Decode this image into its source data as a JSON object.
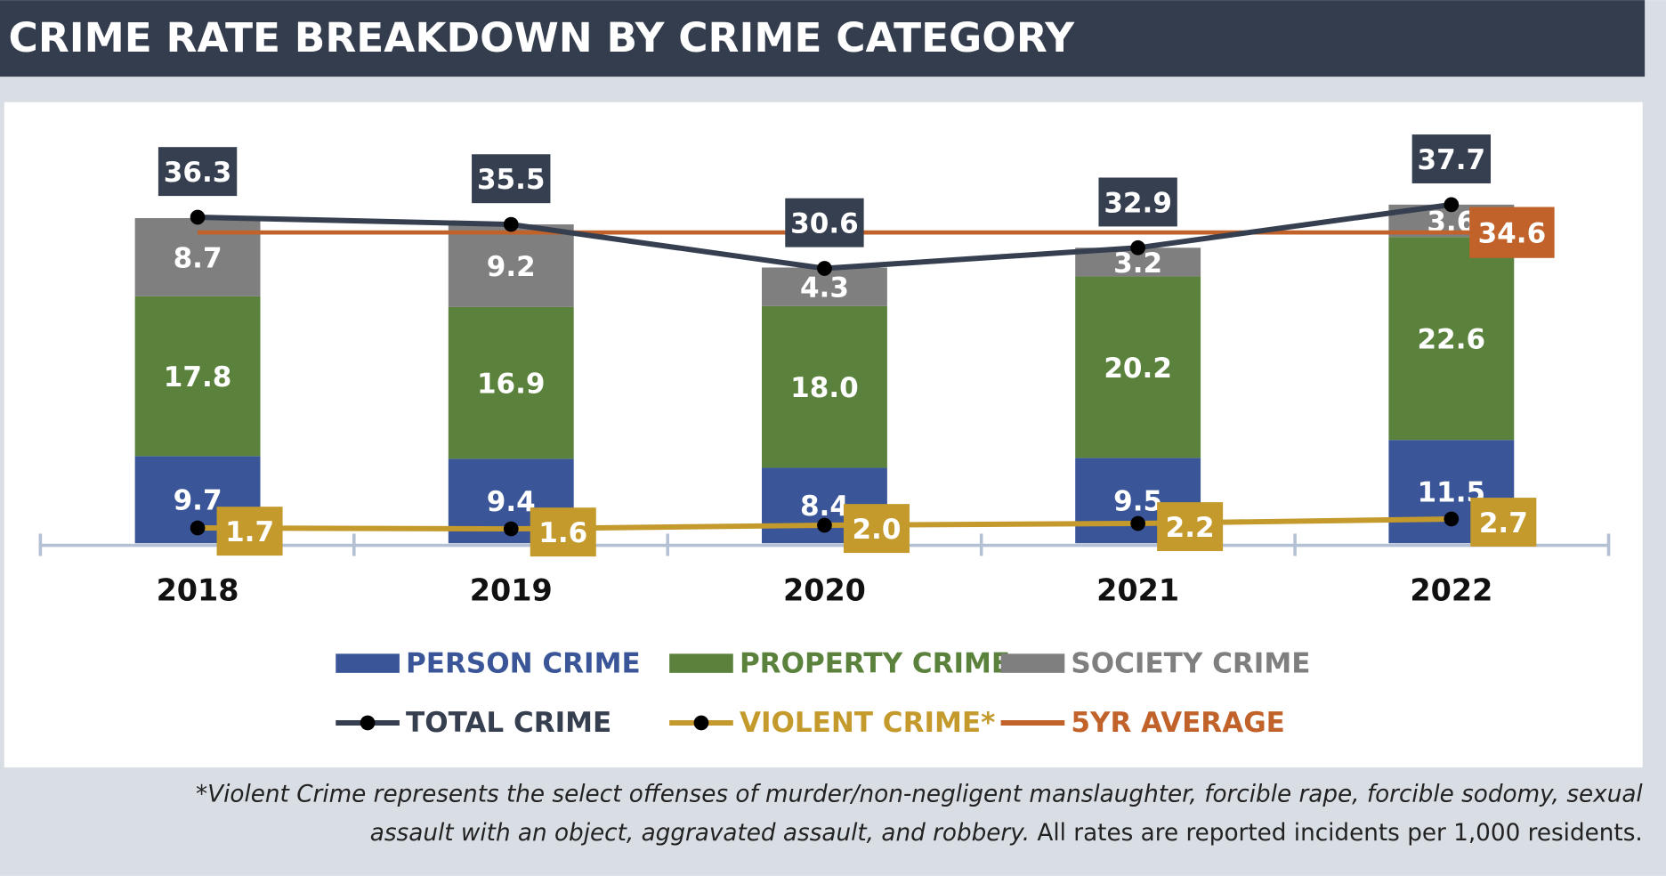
{
  "chart_data": {
    "type": "bar",
    "title": "CRIME RATE BREAKDOWN BY CRIME CATEGORY",
    "categories": [
      "2018",
      "2019",
      "2020",
      "2021",
      "2022"
    ],
    "series": [
      {
        "name": "PERSON CRIME",
        "type": "bar",
        "color": "#3a5699",
        "values": [
          9.7,
          9.4,
          8.4,
          9.5,
          11.5
        ]
      },
      {
        "name": "PROPERTY CRIME",
        "type": "bar",
        "color": "#5b823d",
        "values": [
          17.8,
          16.9,
          18.0,
          20.2,
          22.6
        ],
        "value_labels": [
          "17.8",
          "16.9",
          "18.0",
          "20.2",
          "22.6"
        ]
      },
      {
        "name": "SOCIETY CRIME",
        "type": "bar",
        "color": "#7f7f7f",
        "values": [
          8.7,
          9.2,
          4.3,
          3.2,
          3.6
        ]
      },
      {
        "name": "TOTAL CRIME",
        "type": "line",
        "color": "#363f50",
        "values": [
          36.3,
          35.5,
          30.6,
          32.9,
          37.7
        ]
      },
      {
        "name": "VIOLENT CRIME*",
        "type": "line",
        "color": "#c49a2c",
        "values": [
          1.7,
          1.6,
          2.0,
          2.2,
          2.7
        ],
        "value_labels": [
          "1.7",
          "1.6",
          "2.0",
          "2.2",
          "2.7"
        ]
      },
      {
        "name": "5YR AVERAGE",
        "type": "hline",
        "color": "#c0622a",
        "value": 34.6
      }
    ],
    "footnote": [
      "*Violent Crime represents the select offenses of murder/non-negligent manslaughter, forcible rape, forcible sodomy, sexual",
      "assault with an object, aggravated assault, and robbery."
    ],
    "footnote_note": "All rates are reported incidents per 1,000 residents."
  }
}
